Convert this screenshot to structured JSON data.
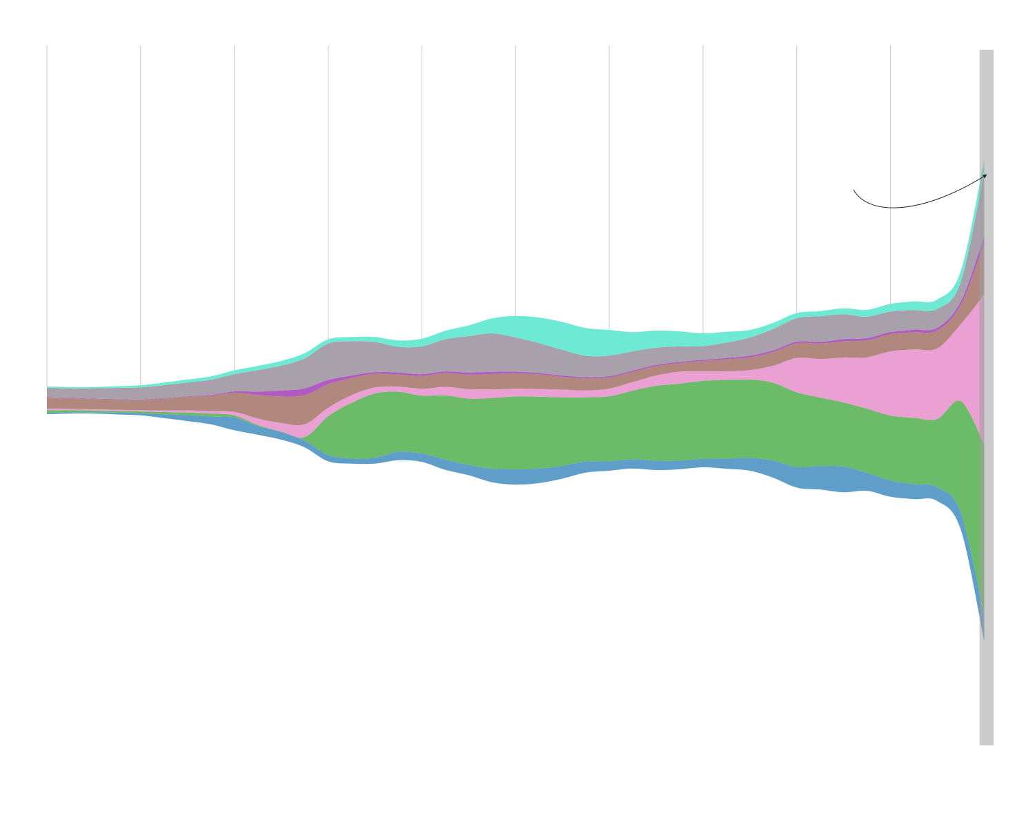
{
  "chart_data": {
    "type": "area",
    "subtype": "streamgraph",
    "title": "",
    "xlabel": "",
    "ylabel": "",
    "x": [
      0,
      0.25,
      0.5,
      0.75,
      1,
      1.25,
      1.5,
      1.75,
      2,
      2.25,
      2.5,
      2.75,
      3,
      3.25,
      3.5,
      3.75,
      4,
      4.25,
      4.5,
      4.75,
      5,
      5.25,
      5.5,
      5.75,
      6,
      6.25,
      6.5,
      6.75,
      7,
      7.25,
      7.5,
      7.75,
      8,
      8.25,
      8.5,
      8.75,
      9,
      9.25,
      9.5,
      9.75,
      10
    ],
    "xlim": [
      -0.5,
      10.1
    ],
    "vertical_gridlines_at": [
      0,
      1,
      2,
      3,
      4,
      5,
      6,
      7,
      8,
      9
    ],
    "highlight_range": [
      9.95,
      10.1
    ],
    "series": [
      {
        "color": "#5f9ec9",
        "values": [
          3,
          3,
          3,
          5,
          5,
          9,
          14,
          18,
          30,
          20,
          18,
          16,
          15,
          12,
          14,
          20,
          20,
          24,
          24,
          32,
          36,
          34,
          30,
          26,
          22,
          22,
          22,
          20,
          20,
          24,
          30,
          40,
          48,
          55,
          60,
          42,
          38,
          35,
          32,
          40,
          60
        ]
      },
      {
        "color": "#6bbb69",
        "values": [
          6,
          5,
          4,
          3,
          4,
          5,
          6,
          7,
          5,
          3,
          1,
          8,
          90,
          130,
          150,
          140,
          135,
          150,
          155,
          165,
          170,
          168,
          160,
          150,
          152,
          160,
          175,
          180,
          182,
          184,
          183,
          182,
          175,
          160,
          150,
          150,
          152,
          155,
          160,
          260,
          400
        ]
      },
      {
        "color": "#eaa0d2",
        "values": [
          4,
          3,
          3,
          3,
          3,
          4,
          5,
          6,
          8,
          15,
          20,
          30,
          20,
          18,
          14,
          12,
          16,
          20,
          22,
          20,
          18,
          18,
          18,
          16,
          18,
          20,
          24,
          28,
          22,
          20,
          22,
          40,
          80,
          90,
          105,
          120,
          150,
          160,
          165,
          180,
          350
        ]
      },
      {
        "color": "#b0887e",
        "values": [
          26,
          25,
          24,
          24,
          24,
          28,
          32,
          36,
          45,
          55,
          62,
          68,
          55,
          40,
          32,
          28,
          30,
          32,
          34,
          36,
          36,
          34,
          30,
          28,
          26,
          24,
          22,
          20,
          24,
          28,
          30,
          32,
          34,
          36,
          38,
          40,
          40,
          40,
          42,
          45,
          120
        ]
      },
      {
        "color": "#b05ac2",
        "values": [
          1,
          1,
          1,
          1,
          1,
          1,
          1,
          2,
          3,
          8,
          14,
          16,
          10,
          6,
          4,
          5,
          4,
          4,
          5,
          5,
          4,
          3,
          3,
          3,
          3,
          3,
          3,
          3,
          3,
          3,
          4,
          4,
          4,
          4,
          5,
          5,
          5,
          6,
          6,
          8,
          16
        ]
      },
      {
        "color": "#a8a0aa",
        "values": [
          22,
          22,
          24,
          26,
          28,
          30,
          32,
          35,
          40,
          50,
          58,
          70,
          85,
          80,
          70,
          60,
          65,
          75,
          85,
          90,
          80,
          70,
          60,
          50,
          48,
          45,
          40,
          36,
          32,
          36,
          42,
          50,
          55,
          60,
          58,
          50,
          48,
          46,
          44,
          46,
          150
        ]
      },
      {
        "color": "#6eead4",
        "values": [
          3,
          3,
          3,
          4,
          5,
          6,
          7,
          8,
          9,
          10,
          11,
          12,
          10,
          10,
          12,
          15,
          18,
          20,
          25,
          35,
          50,
          60,
          65,
          65,
          60,
          45,
          40,
          35,
          30,
          25,
          18,
          14,
          12,
          12,
          14,
          16,
          18,
          20,
          22,
          25,
          30
        ]
      }
    ],
    "annotation": {
      "type": "curved-arrow"
    }
  }
}
